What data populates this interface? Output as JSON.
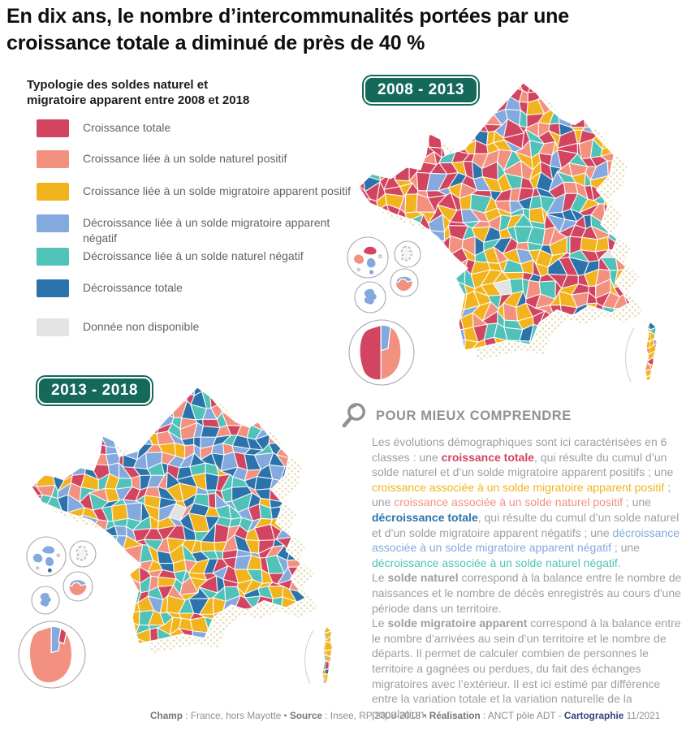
{
  "title": {
    "line1": "En dix ans, le nombre d’intercommunalités portées par une",
    "line2": "croissance totale a diminué de près de 40 %"
  },
  "legend": {
    "title_line1": "Typologie des soldes naturel et",
    "title_line2": "migratoire apparent entre 2008 et 2018",
    "items": [
      {
        "key": "red",
        "color": "red",
        "label": "Croissance totale"
      },
      {
        "key": "salmon",
        "color": "salmon",
        "label": "Croissance liée à un solde naturel positif"
      },
      {
        "key": "yellow",
        "color": "yellow",
        "label": "Croissance liée à un solde migratoire apparent positif"
      },
      {
        "key": "light_blue",
        "color": "light_blue",
        "label": "Décroissance liée à un solde migratoire apparent négatif"
      },
      {
        "key": "teal",
        "color": "teal",
        "label": "Décroissance liée à un solde naturel négatif"
      },
      {
        "key": "dark_blue",
        "color": "dark_blue",
        "label": "Décroissance totale"
      },
      {
        "key": "no_data",
        "color": "no_data_gray",
        "label": "Donnée non disponible"
      }
    ]
  },
  "maps": [
    {
      "id": "mapA",
      "badge": "2008 - 2013",
      "approx_color_share": {
        "red": 0.3,
        "salmon": 0.13,
        "yellow": 0.21,
        "light_blue": 0.08,
        "teal": 0.16,
        "dark_blue": 0.1,
        "no_data": 0.02
      },
      "insets": {
        "guadeloupe": {
          "west_wing": "salmon",
          "east_wing": "red",
          "south": "light_blue",
          "island": "light_blue"
        },
        "mayotte": "no-data",
        "martinique": "light_blue",
        "la_reunion": {
          "body": "salmon",
          "cap": "light_blue"
        },
        "guyane": {
          "west": "red",
          "wedge": "light_blue",
          "sliver": null,
          "east": "salmon"
        }
      }
    },
    {
      "id": "mapB",
      "badge": "2013 - 2018",
      "approx_color_share": {
        "red": 0.15,
        "salmon": 0.1,
        "yellow": 0.24,
        "light_blue": 0.14,
        "teal": 0.19,
        "dark_blue": 0.17,
        "no_data": 0.01
      },
      "insets": {
        "guadeloupe": {
          "west_wing": "light_blue",
          "east_wing": "light_blue",
          "south": "light_blue",
          "island": "dark_blue"
        },
        "mayotte": "no-data",
        "martinique": "light_blue",
        "la_reunion": {
          "body": "salmon",
          "cap": "light_blue"
        },
        "guyane": {
          "west": null,
          "wedge": "light_blue",
          "sliver": "red",
          "east": "salmon"
        }
      }
    }
  ],
  "explainer": {
    "icon": "magnifier-icon",
    "title": "POUR MIEUX COMPRENDRE",
    "paragraphs": [
      [
        {
          "t": "Les évolutions démographiques sont ici caractérisées en 6 classes : une "
        },
        {
          "t": "croissance totale",
          "c": "red",
          "b": true
        },
        {
          "t": ", qui résulte du cumul d’un solde naturel et d’un solde migratoire apparent positifs ; une "
        },
        {
          "t": "croissance associée à un solde migratoire apparent positif",
          "c": "yellow"
        },
        {
          "t": " ; une "
        },
        {
          "t": "croissance associée à un solde naturel positif",
          "c": "salmon"
        },
        {
          "t": " ; une "
        },
        {
          "t": "décroissance totale",
          "c": "dark_blue",
          "b": true
        },
        {
          "t": ", qui résulte du cumul d’un solde naturel et d’un solde migratoire apparent négatifs ; une "
        },
        {
          "t": "décroissance associée à un solde migratoire apparent négatif",
          "c": "light_blue"
        },
        {
          "t": " ; une "
        },
        {
          "t": "décroissance associée à un solde naturel négatif",
          "c": "teal"
        },
        {
          "t": "."
        }
      ],
      [
        {
          "t": "Le "
        },
        {
          "t": "solde naturel",
          "b": true
        },
        {
          "t": " correspond à la balance entre le nombre de naissances et le nombre de décès enregistrés au cours d'une période dans un territoire."
        }
      ],
      [
        {
          "t": "Le "
        },
        {
          "t": "solde migratoire apparent",
          "b": true
        },
        {
          "t": " correspond à la balance entre le nombre d’arrivées au sein d’un territoire et le nombre de départs. Il permet de calculer combien de personnes le territoire a gagnées ou perdues, du fait des échanges migratoires avec l’extérieur. Il est ici estimé par différence entre la variation totale et la variation naturelle de la population."
        }
      ]
    ]
  },
  "footer": {
    "segments": [
      {
        "t": "Champ",
        "b": true
      },
      {
        "t": " : France, hors Mayotte • "
      },
      {
        "t": "Source",
        "b": true
      },
      {
        "t": " : Insee, RP 2008-2018 • "
      },
      {
        "t": "Réalisation",
        "b": true
      },
      {
        "t": " : ANCT pôle ADT -  "
      },
      {
        "t": "Cartographie",
        "b": true,
        "c": "navy"
      },
      {
        "t": " 11/2021"
      }
    ]
  },
  "palette": {
    "red": "#d24560",
    "salmon": "#f29180",
    "yellow": "#f2b41e",
    "light_blue": "#84a9de",
    "teal": "#50c2b8",
    "dark_blue": "#2b73aa",
    "no_data_gray": "#e3e3e3",
    "halo_dots": "#e8dfc0",
    "badge_green": "#15695a",
    "navy": "#35427c",
    "body_text_gray": "#9aa0a5",
    "title_black": "#0e0e0e"
  }
}
